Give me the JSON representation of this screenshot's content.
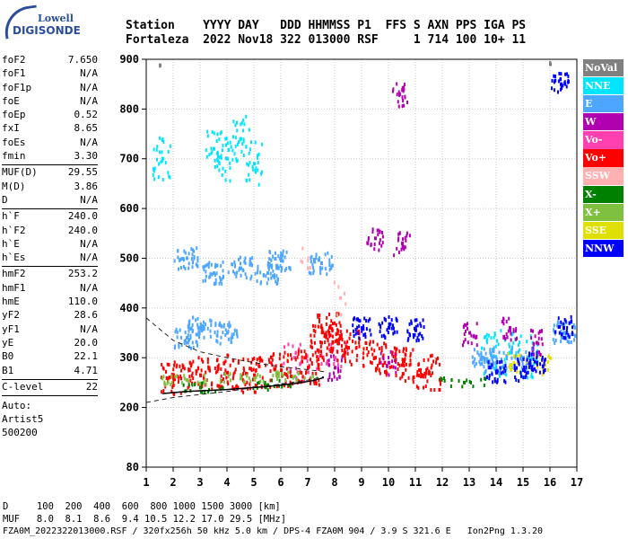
{
  "logo": {
    "line1": "Lowell",
    "line2": "DIGISONDE"
  },
  "header": {
    "row1": "Station    YYYY DAY   DDD HHMMSS P1  FFS S AXN PPS IGA PS",
    "row2": "Fortaleza  2022 Nov18 322 013000 RSF     1 714 100 10+ 11"
  },
  "params": {
    "g1": [
      {
        "k": "foF2",
        "v": "7.650"
      },
      {
        "k": "foF1",
        "v": "N/A"
      },
      {
        "k": "foF1p",
        "v": "N/A"
      },
      {
        "k": "foE",
        "v": "N/A"
      },
      {
        "k": "foEp",
        "v": "0.52"
      },
      {
        "k": "fxI",
        "v": "8.65"
      },
      {
        "k": "foEs",
        "v": "N/A"
      },
      {
        "k": "fmin",
        "v": "3.30"
      }
    ],
    "g2": [
      {
        "k": "MUF(D)",
        "v": "29.55"
      },
      {
        "k": "M(D)",
        "v": "3.86"
      },
      {
        "k": "D",
        "v": "N/A"
      }
    ],
    "g3": [
      {
        "k": "h`F",
        "v": "240.0"
      },
      {
        "k": "h`F2",
        "v": "240.0"
      },
      {
        "k": "h`E",
        "v": "N/A"
      },
      {
        "k": "h`Es",
        "v": "N/A"
      }
    ],
    "g4": [
      {
        "k": "hmF2",
        "v": "253.2"
      },
      {
        "k": "hmF1",
        "v": "N/A"
      },
      {
        "k": "hmE",
        "v": "110.0"
      },
      {
        "k": "yF2",
        "v": "28.6"
      },
      {
        "k": "yF1",
        "v": "N/A"
      },
      {
        "k": "yE",
        "v": "20.0"
      },
      {
        "k": "B0",
        "v": "22.1"
      },
      {
        "k": "B1",
        "v": "4.71"
      }
    ],
    "g5": [
      {
        "k": "C-level",
        "v": "22"
      }
    ],
    "auto_lines": [
      "Auto:",
      "Artist5",
      "500200"
    ]
  },
  "legend": [
    {
      "label": "NoVal",
      "color": "#808080"
    },
    {
      "label": "NNE",
      "color": "#00e5ff"
    },
    {
      "label": "E",
      "color": "#4da6ff"
    },
    {
      "label": "W",
      "color": "#b000b0"
    },
    {
      "label": "Vo-",
      "color": "#ff40b0"
    },
    {
      "label": "Vo+",
      "color": "#ff0000"
    },
    {
      "label": "SSW",
      "color": "#ffb0b0"
    },
    {
      "label": "X-",
      "color": "#008000"
    },
    {
      "label": "X+",
      "color": "#80c040"
    },
    {
      "label": "SSE",
      "color": "#e0e000"
    },
    {
      "label": "NNW",
      "color": "#0000ff"
    }
  ],
  "footer": {
    "line1": "D     100  200  400  600  800 1000 1500 3000 [km]",
    "line2": "MUF   8.0  8.1  8.6  9.4 10.5 12.2 17.0 29.5 [MHz]",
    "line3": "FZA0M_2022322013000.RSF / 320fx256h 50 kHz 5.0 km / DPS-4 FZA0M 904 / 3.9 S 321.6 E   Ion2Png 1.3.20"
  },
  "chart_data": {
    "type": "scatter",
    "title": "",
    "xlabel": "",
    "ylabel": "",
    "xlim": [
      1,
      17
    ],
    "ylim": [
      80,
      900
    ],
    "x_ticks": [
      1,
      2,
      3,
      4,
      5,
      6,
      7,
      8,
      9,
      10,
      11,
      12,
      13,
      14,
      15,
      16,
      17
    ],
    "y_ticks": [
      80,
      200,
      300,
      400,
      500,
      600,
      700,
      800,
      900
    ],
    "grid": "dotted",
    "series": [
      {
        "name": "NoVal",
        "points": [
          [
            1.5,
            888
          ],
          [
            16.0,
            890
          ]
        ]
      },
      {
        "name": "NNE",
        "points": [
          [
            3.5,
            720
          ],
          [
            4.0,
            700
          ],
          [
            4.5,
            740
          ],
          [
            5.0,
            690
          ],
          [
            13.8,
            305
          ],
          [
            14.5,
            310
          ],
          [
            15.2,
            300
          ],
          [
            1.6,
            700
          ]
        ]
      },
      {
        "name": "E",
        "points": [
          [
            2.5,
            500
          ],
          [
            3.5,
            470
          ],
          [
            4.5,
            480
          ],
          [
            5.5,
            470
          ],
          [
            6.0,
            495
          ],
          [
            7.5,
            490
          ],
          [
            2.5,
            340
          ],
          [
            3.0,
            360
          ],
          [
            4.0,
            350
          ],
          [
            13.5,
            300
          ],
          [
            14.0,
            290
          ],
          [
            15.0,
            300
          ],
          [
            16.5,
            350
          ]
        ]
      },
      {
        "name": "W",
        "points": [
          [
            10.4,
            830
          ],
          [
            9.5,
            540
          ],
          [
            10.5,
            530
          ],
          [
            13.0,
            350
          ],
          [
            14.5,
            360
          ],
          [
            15.5,
            330
          ],
          [
            8.0,
            280
          ],
          [
            10.0,
            290
          ]
        ]
      },
      {
        "name": "Vo-",
        "points": [
          [
            6.5,
            300
          ],
          [
            7.0,
            280
          ],
          [
            8.0,
            300
          ]
        ]
      },
      {
        "name": "Vo+",
        "points": [
          [
            2.0,
            260
          ],
          [
            3.0,
            265
          ],
          [
            4.0,
            270
          ],
          [
            5.0,
            265
          ],
          [
            6.0,
            275
          ],
          [
            7.0,
            280
          ],
          [
            7.5,
            330
          ],
          [
            7.8,
            360
          ],
          [
            8.5,
            320
          ],
          [
            9.5,
            300
          ],
          [
            10.5,
            285
          ],
          [
            11.5,
            270
          ]
        ]
      },
      {
        "name": "SSW",
        "points": [
          [
            7.0,
            480
          ],
          [
            8.2,
            420
          ]
        ]
      },
      {
        "name": "X-",
        "points": [
          [
            3.0,
            240
          ],
          [
            5.5,
            245
          ],
          [
            12.8,
            250
          ]
        ]
      },
      {
        "name": "X+",
        "points": [
          [
            2.5,
            255
          ],
          [
            4.5,
            258
          ],
          [
            6.5,
            262
          ]
        ]
      },
      {
        "name": "SSE",
        "points": [
          [
            14.8,
            290
          ],
          [
            15.8,
            285
          ]
        ]
      },
      {
        "name": "NNW",
        "points": [
          [
            9.0,
            360
          ],
          [
            10.0,
            360
          ],
          [
            11.0,
            355
          ],
          [
            14.0,
            270
          ],
          [
            15.0,
            275
          ],
          [
            15.5,
            290
          ],
          [
            16.5,
            360
          ],
          [
            16.4,
            850
          ]
        ]
      }
    ],
    "profile_curve": [
      [
        1.6,
        228
      ],
      [
        2.5,
        232
      ],
      [
        4.0,
        236
      ],
      [
        5.5,
        242
      ],
      [
        6.5,
        248
      ],
      [
        7.2,
        254
      ],
      [
        7.6,
        260
      ]
    ],
    "dashed_upper": [
      [
        1.0,
        380
      ],
      [
        2.0,
        335
      ],
      [
        3.0,
        312
      ],
      [
        4.0,
        300
      ],
      [
        5.0,
        290
      ],
      [
        6.0,
        282
      ],
      [
        7.0,
        276
      ],
      [
        7.6,
        272
      ]
    ],
    "dashed_lower": [
      [
        1.0,
        210
      ],
      [
        2.0,
        220
      ],
      [
        3.0,
        226
      ],
      [
        4.0,
        232
      ],
      [
        5.0,
        240
      ],
      [
        6.0,
        247
      ],
      [
        7.0,
        255
      ],
      [
        7.6,
        262
      ]
    ]
  }
}
